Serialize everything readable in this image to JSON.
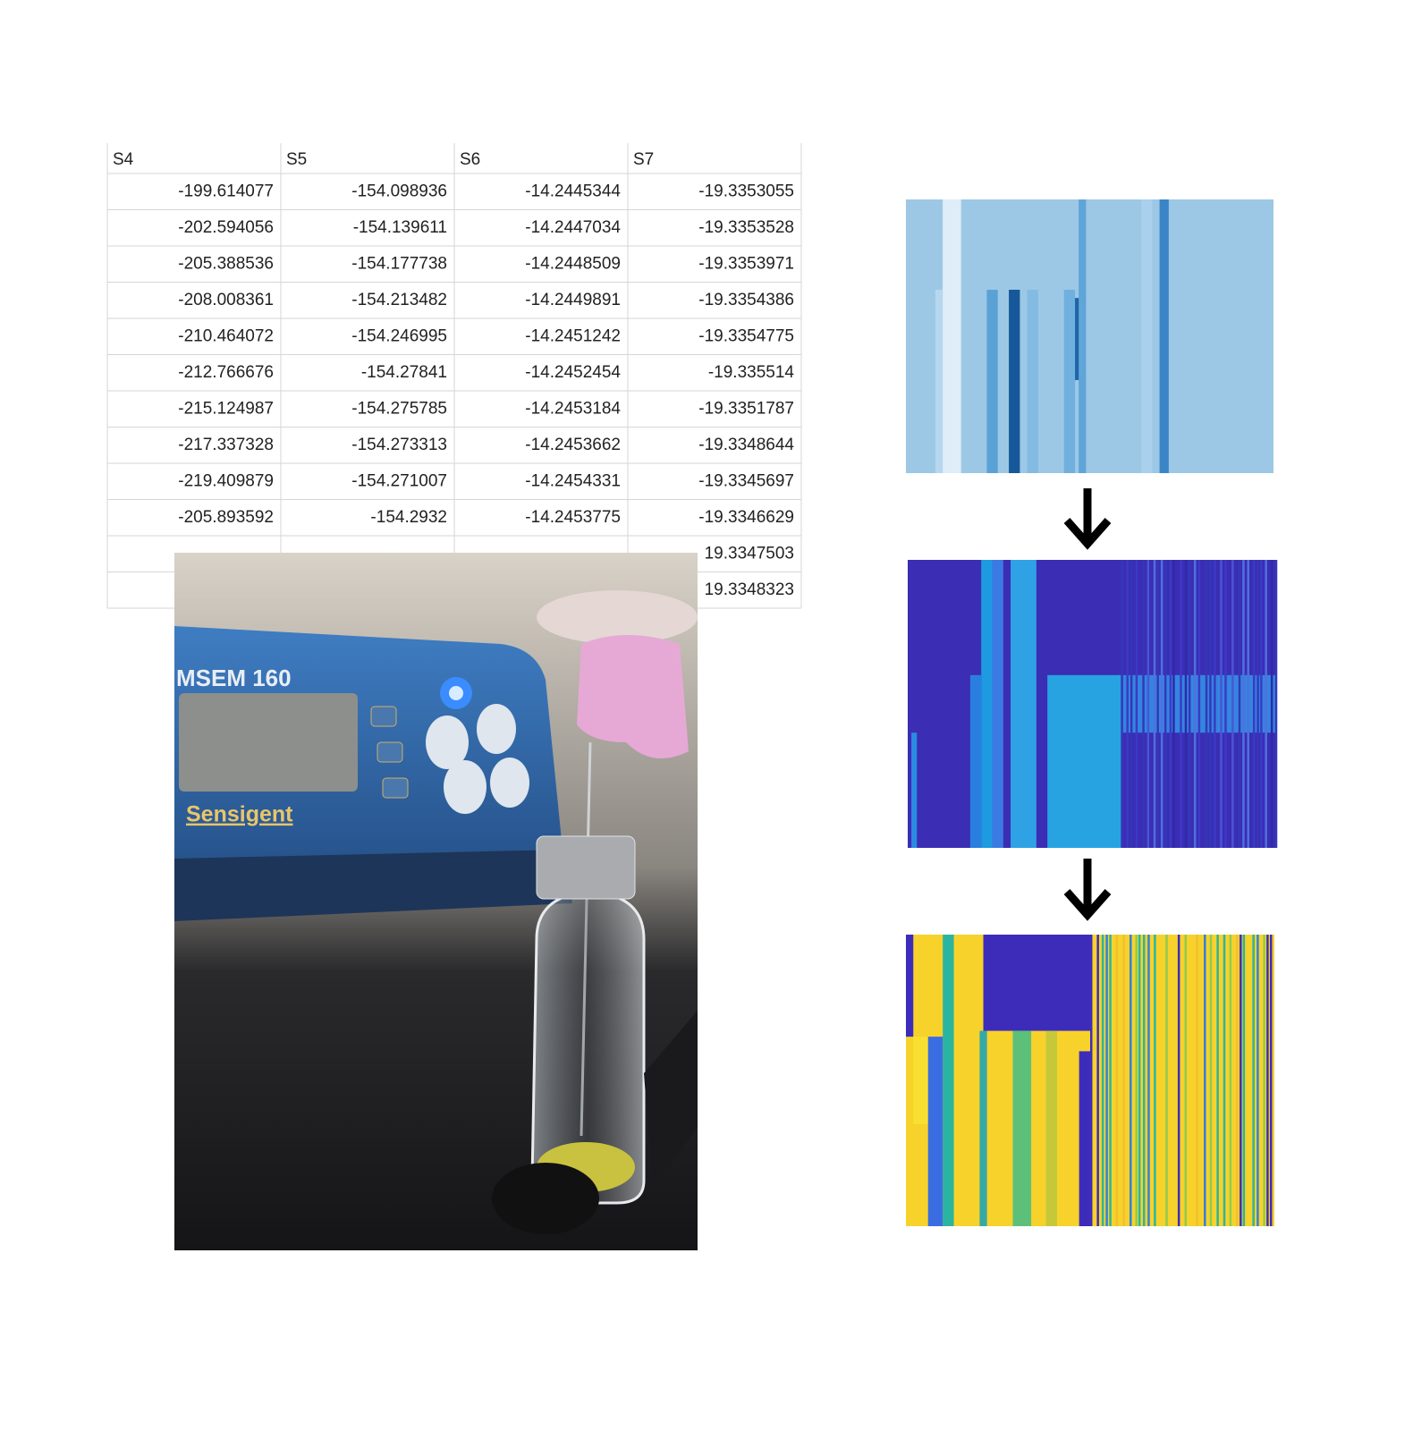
{
  "table": {
    "headers": [
      "S4",
      "S5",
      "S6",
      "S7"
    ],
    "rows": [
      [
        "-199.614077",
        "-154.098936",
        "-14.2445344",
        "-19.3353055"
      ],
      [
        "-202.594056",
        "-154.139611",
        "-14.2447034",
        "-19.3353528"
      ],
      [
        "-205.388536",
        "-154.177738",
        "-14.2448509",
        "-19.3353971"
      ],
      [
        "-208.008361",
        "-154.213482",
        "-14.2449891",
        "-19.3354386"
      ],
      [
        "-210.464072",
        "-154.246995",
        "-14.2451242",
        "-19.3354775"
      ],
      [
        "-212.766676",
        "-154.27841",
        "-14.2452454",
        "-19.335514"
      ],
      [
        "-215.124987",
        "-154.275785",
        "-14.2453184",
        "-19.3351787"
      ],
      [
        "-217.337328",
        "-154.273313",
        "-14.2453662",
        "-19.3348644"
      ],
      [
        "-219.409879",
        "-154.271007",
        "-14.2454331",
        "-19.3345697"
      ],
      [
        "-205.893592",
        "-154.2932",
        "-14.2453775",
        "-19.3346629"
      ]
    ],
    "partial_rows": [
      "19.3347503",
      "19.3348323"
    ]
  },
  "photo": {
    "device_label": "MSEM 160",
    "brand": "Sensigent"
  }
}
